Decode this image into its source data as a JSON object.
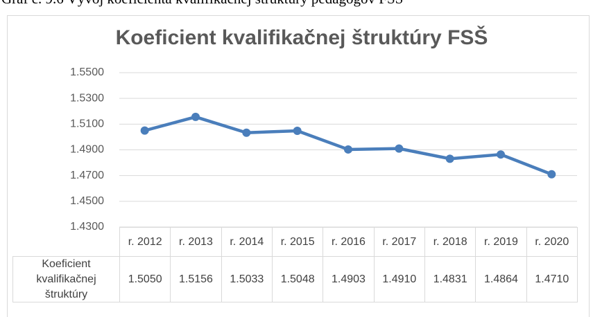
{
  "caption": "Graf č. 9.6 Vývoj koeficienta kvalifikačnej štruktúry pedagógov FSŠ",
  "chart_data": {
    "type": "line",
    "title": "Koeficient kvalifikačnej štruktúry FSŠ",
    "categories": [
      "r. 2012",
      "r. 2013",
      "r. 2014",
      "r. 2015",
      "r. 2016",
      "r. 2017",
      "r. 2018",
      "r. 2019",
      "r. 2020"
    ],
    "series": [
      {
        "name": "Koeficient kvalifikačnej štruktúry",
        "color": "#4a7ebb",
        "values": [
          1.505,
          1.5156,
          1.5033,
          1.5048,
          1.4903,
          1.491,
          1.4831,
          1.4864,
          1.471
        ],
        "value_labels": [
          "1.5050",
          "1.5156",
          "1.5033",
          "1.5048",
          "1.4903",
          "1.4910",
          "1.4831",
          "1.4864",
          "1.4710"
        ]
      }
    ],
    "ylim": [
      1.43,
      1.55
    ],
    "yticks": [
      {
        "value": 1.43,
        "label": "1.4300"
      },
      {
        "value": 1.45,
        "label": "1.4500"
      },
      {
        "value": 1.47,
        "label": "1.4700"
      },
      {
        "value": 1.49,
        "label": "1.4900"
      },
      {
        "value": 1.51,
        "label": "1.5100"
      },
      {
        "value": 1.53,
        "label": "1.5300"
      },
      {
        "value": 1.55,
        "label": "1.5500"
      }
    ],
    "grid": true
  }
}
